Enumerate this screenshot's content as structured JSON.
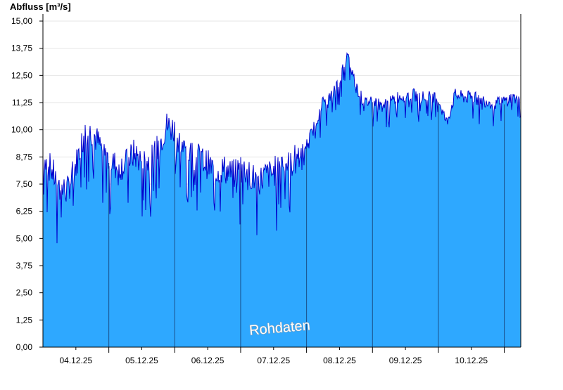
{
  "chart_data": {
    "type": "area",
    "ylabel": "Abfluss [m³/s]",
    "watermark": "Rohdaten",
    "ylim": [
      0,
      15
    ],
    "yticks": [
      "0,00",
      "1,25",
      "2,50",
      "3,75",
      "5,00",
      "6,25",
      "7,50",
      "8,75",
      "10,00",
      "11,25",
      "12,50",
      "13,75",
      "15,00"
    ],
    "xlim": [
      "2025-12-03T12:00",
      "2025-12-10T18:00"
    ],
    "xticks": [
      {
        "label": "04.12.25",
        "at": "2025-12-04T00:00"
      },
      {
        "label": "05.12.25",
        "at": "2025-12-05T00:00"
      },
      {
        "label": "06.12.25",
        "at": "2025-12-06T00:00"
      },
      {
        "label": "07.12.25",
        "at": "2025-12-07T00:00"
      },
      {
        "label": "08.12.25",
        "at": "2025-12-08T00:00"
      },
      {
        "label": "09.12.25",
        "at": "2025-12-09T00:00"
      },
      {
        "label": "10.12.25",
        "at": "2025-12-10T00:00"
      }
    ],
    "grid": "horizontal",
    "colors": {
      "fill": "#2ea8ff",
      "line": "#0000cc",
      "grid": "#e6e6e6",
      "daylines": "#1a4f8a"
    },
    "series": [
      {
        "x": [
          "2025-12-03T12:00",
          "2025-12-03T15:00",
          "2025-12-03T18:00",
          "2025-12-03T21:00",
          "2025-12-04T00:00",
          "2025-12-04T03:00",
          "2025-12-04T06:00",
          "2025-12-04T09:00",
          "2025-12-04T12:00",
          "2025-12-04T15:00",
          "2025-12-04T18:00",
          "2025-12-04T21:00",
          "2025-12-05T00:00",
          "2025-12-05T03:00",
          "2025-12-05T06:00",
          "2025-12-05T09:00",
          "2025-12-05T12:00",
          "2025-12-05T15:00",
          "2025-12-05T18:00",
          "2025-12-05T21:00",
          "2025-12-06T00:00",
          "2025-12-06T03:00",
          "2025-12-06T06:00",
          "2025-12-06T09:00",
          "2025-12-06T12:00",
          "2025-12-06T15:00",
          "2025-12-06T18:00",
          "2025-12-06T21:00",
          "2025-12-07T00:00",
          "2025-12-07T03:00",
          "2025-12-07T06:00",
          "2025-12-07T09:00",
          "2025-12-07T12:00",
          "2025-12-07T15:00",
          "2025-12-07T18:00",
          "2025-12-07T21:00",
          "2025-12-08T00:00",
          "2025-12-08T03:00",
          "2025-12-08T06:00",
          "2025-12-08T09:00",
          "2025-12-08T12:00",
          "2025-12-08T15:00",
          "2025-12-08T18:00",
          "2025-12-08T21:00",
          "2025-12-09T00:00",
          "2025-12-09T03:00",
          "2025-12-09T06:00",
          "2025-12-09T09:00",
          "2025-12-09T12:00",
          "2025-12-09T15:00",
          "2025-12-09T18:00",
          "2025-12-09T21:00",
          "2025-12-10T00:00",
          "2025-12-10T03:00",
          "2025-12-10T06:00",
          "2025-12-10T09:00",
          "2025-12-10T12:00",
          "2025-12-10T15:00",
          "2025-12-10T18:00"
        ],
        "values": [
          8.6,
          8.2,
          7.3,
          7.2,
          8.4,
          9.8,
          9.9,
          9.2,
          8.6,
          8.3,
          8.4,
          8.9,
          8.6,
          8.5,
          9.2,
          10.2,
          10.0,
          9.1,
          8.9,
          8.7,
          8.4,
          8.1,
          8.2,
          7.9,
          8.3,
          8.0,
          7.6,
          7.9,
          8.0,
          8.7,
          8.3,
          8.9,
          9.3,
          10.2,
          11.3,
          11.5,
          12.3,
          13.4,
          12.0,
          11.2,
          11.4,
          11.1,
          11.2,
          11.5,
          11.6,
          11.6,
          11.5,
          11.5,
          11.4,
          10.3,
          11.6,
          11.5,
          11.5,
          11.4,
          11.3,
          11.2,
          11.3,
          11.5,
          11.3
        ]
      }
    ]
  }
}
